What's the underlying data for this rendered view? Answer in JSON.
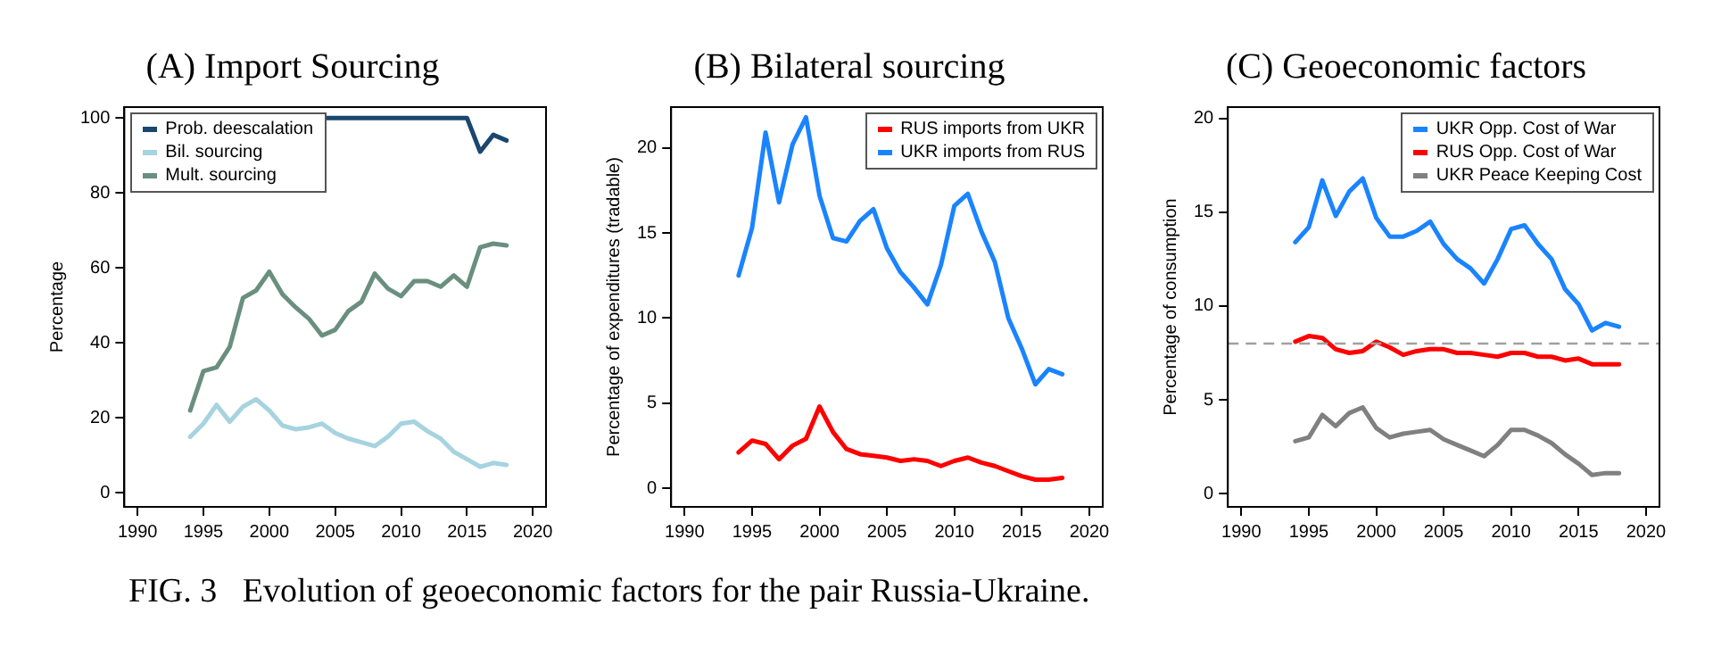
{
  "chart_data": [
    {
      "type": "line",
      "title": "(A) Import Sourcing",
      "ylabel": "Percentage",
      "x": [
        1994,
        1995,
        1996,
        1997,
        1998,
        1999,
        2000,
        2001,
        2002,
        2003,
        2004,
        2005,
        2006,
        2007,
        2008,
        2009,
        2010,
        2011,
        2012,
        2013,
        2014,
        2015,
        2016,
        2017,
        2018
      ],
      "xlim": [
        1989,
        2021
      ],
      "xticks": [
        1990,
        1995,
        2000,
        2005,
        2010,
        2015,
        2020
      ],
      "ylim": [
        -3.7,
        102.9
      ],
      "yticks": [
        0,
        20,
        40,
        60,
        80,
        100
      ],
      "grid": false,
      "legend": "top left",
      "marker": "none",
      "line_style": "solid",
      "series": [
        {
          "name": "Prob. deescalation",
          "color": "#1a476f",
          "values": [
            null,
            null,
            null,
            null,
            null,
            null,
            null,
            null,
            null,
            null,
            100,
            100,
            100,
            100,
            100,
            100,
            100,
            100,
            100,
            100,
            100,
            100,
            91,
            95.5,
            94
          ]
        },
        {
          "name": "Bil. sourcing",
          "color": "#a6d3e0",
          "values": [
            15,
            18.5,
            23.5,
            19,
            23,
            25,
            22,
            18,
            17,
            17.5,
            18.5,
            16,
            14.5,
            13.5,
            12.5,
            15,
            18.5,
            19,
            16.5,
            14.5,
            11,
            9,
            7,
            8,
            7.5
          ]
        },
        {
          "name": "Mult. sourcing",
          "color": "#6a8f7f",
          "values": [
            22,
            32.5,
            33.5,
            39,
            52,
            54,
            59,
            53,
            49.5,
            46.5,
            42,
            43.5,
            48.5,
            51,
            58.5,
            54.5,
            52.5,
            56.5,
            56.5,
            55,
            58,
            55,
            65.5,
            66.5,
            66
          ]
        }
      ],
      "annotations": [
        "FIG. 3   Evolution of geoeconomic factors for the pair Russia-Ukraine."
      ]
    },
    {
      "type": "line",
      "title": "(B) Bilateral sourcing",
      "ylabel": "Percentage of expenditures (tradable)",
      "x": [
        1994,
        1995,
        1996,
        1997,
        1998,
        1999,
        2000,
        2001,
        2002,
        2003,
        2004,
        2005,
        2006,
        2007,
        2008,
        2009,
        2010,
        2011,
        2012,
        2013,
        2014,
        2015,
        2016,
        2017,
        2018
      ],
      "xlim": [
        1989,
        2021
      ],
      "xticks": [
        1990,
        1995,
        2000,
        2005,
        2010,
        2015,
        2020
      ],
      "ylim": [
        -1.1,
        22.4
      ],
      "yticks": [
        0,
        5,
        10,
        15,
        20
      ],
      "grid": false,
      "legend": "top right",
      "marker": "none",
      "line_style": "solid",
      "series": [
        {
          "name": "RUS imports from UKR",
          "color": "#ff0000",
          "values": [
            2.1,
            2.8,
            2.6,
            1.7,
            2.5,
            2.9,
            4.8,
            3.3,
            2.3,
            2.0,
            1.9,
            1.8,
            1.6,
            1.7,
            1.6,
            1.3,
            1.6,
            1.8,
            1.5,
            1.3,
            1.0,
            0.7,
            0.5,
            0.5,
            0.6
          ]
        },
        {
          "name": "UKR imports from RUS",
          "color": "#1a84ff",
          "values": [
            12.5,
            15.3,
            20.9,
            16.8,
            20.2,
            21.8,
            17.2,
            14.7,
            14.5,
            15.7,
            16.4,
            14.1,
            12.7,
            11.8,
            10.8,
            13.1,
            16.6,
            17.3,
            15.1,
            13.3,
            10.0,
            8.2,
            6.1,
            7.0,
            6.7
          ]
        }
      ]
    },
    {
      "type": "line",
      "title": "(C) Geoeconomic factors",
      "ylabel": "Percentage of consumption",
      "x": [
        1994,
        1995,
        1996,
        1997,
        1998,
        1999,
        2000,
        2001,
        2002,
        2003,
        2004,
        2005,
        2006,
        2007,
        2008,
        2009,
        2010,
        2011,
        2012,
        2013,
        2014,
        2015,
        2016,
        2017,
        2018
      ],
      "xlim": [
        1989,
        2021
      ],
      "xticks": [
        1990,
        1995,
        2000,
        2005,
        2010,
        2015,
        2020
      ],
      "ylim": [
        -0.7,
        20.6
      ],
      "yticks": [
        0,
        5,
        10,
        15,
        20
      ],
      "grid": false,
      "legend": "top right",
      "marker": "none",
      "line_style": "solid",
      "ref_lines": [
        {
          "axis": "y",
          "value": 8,
          "color": "#a0a0a0",
          "line_style": "dashed"
        }
      ],
      "series": [
        {
          "name": "UKR Opp. Cost of War",
          "color": "#1a84ff",
          "values": [
            13.4,
            14.2,
            16.7,
            14.8,
            16.1,
            16.8,
            14.7,
            13.7,
            13.7,
            14.0,
            14.5,
            13.3,
            12.5,
            12.0,
            11.2,
            12.5,
            14.1,
            14.3,
            13.3,
            12.5,
            10.9,
            10.1,
            8.7,
            9.1,
            8.9
          ]
        },
        {
          "name": "RUS Opp. Cost of War",
          "color": "#ff0000",
          "values": [
            8.1,
            8.4,
            8.3,
            7.7,
            7.5,
            7.6,
            8.1,
            7.8,
            7.4,
            7.6,
            7.7,
            7.7,
            7.5,
            7.5,
            7.4,
            7.3,
            7.5,
            7.5,
            7.3,
            7.3,
            7.1,
            7.2,
            6.9,
            6.9,
            6.9
          ]
        },
        {
          "name": "UKR Peace Keeping Cost",
          "color": "#808080",
          "values": [
            2.8,
            3.0,
            4.2,
            3.6,
            4.3,
            4.6,
            3.5,
            3.0,
            3.2,
            3.3,
            3.4,
            2.9,
            2.6,
            2.3,
            2.0,
            2.6,
            3.4,
            3.4,
            3.1,
            2.7,
            2.1,
            1.6,
            1.0,
            1.1,
            1.1
          ]
        }
      ]
    }
  ]
}
